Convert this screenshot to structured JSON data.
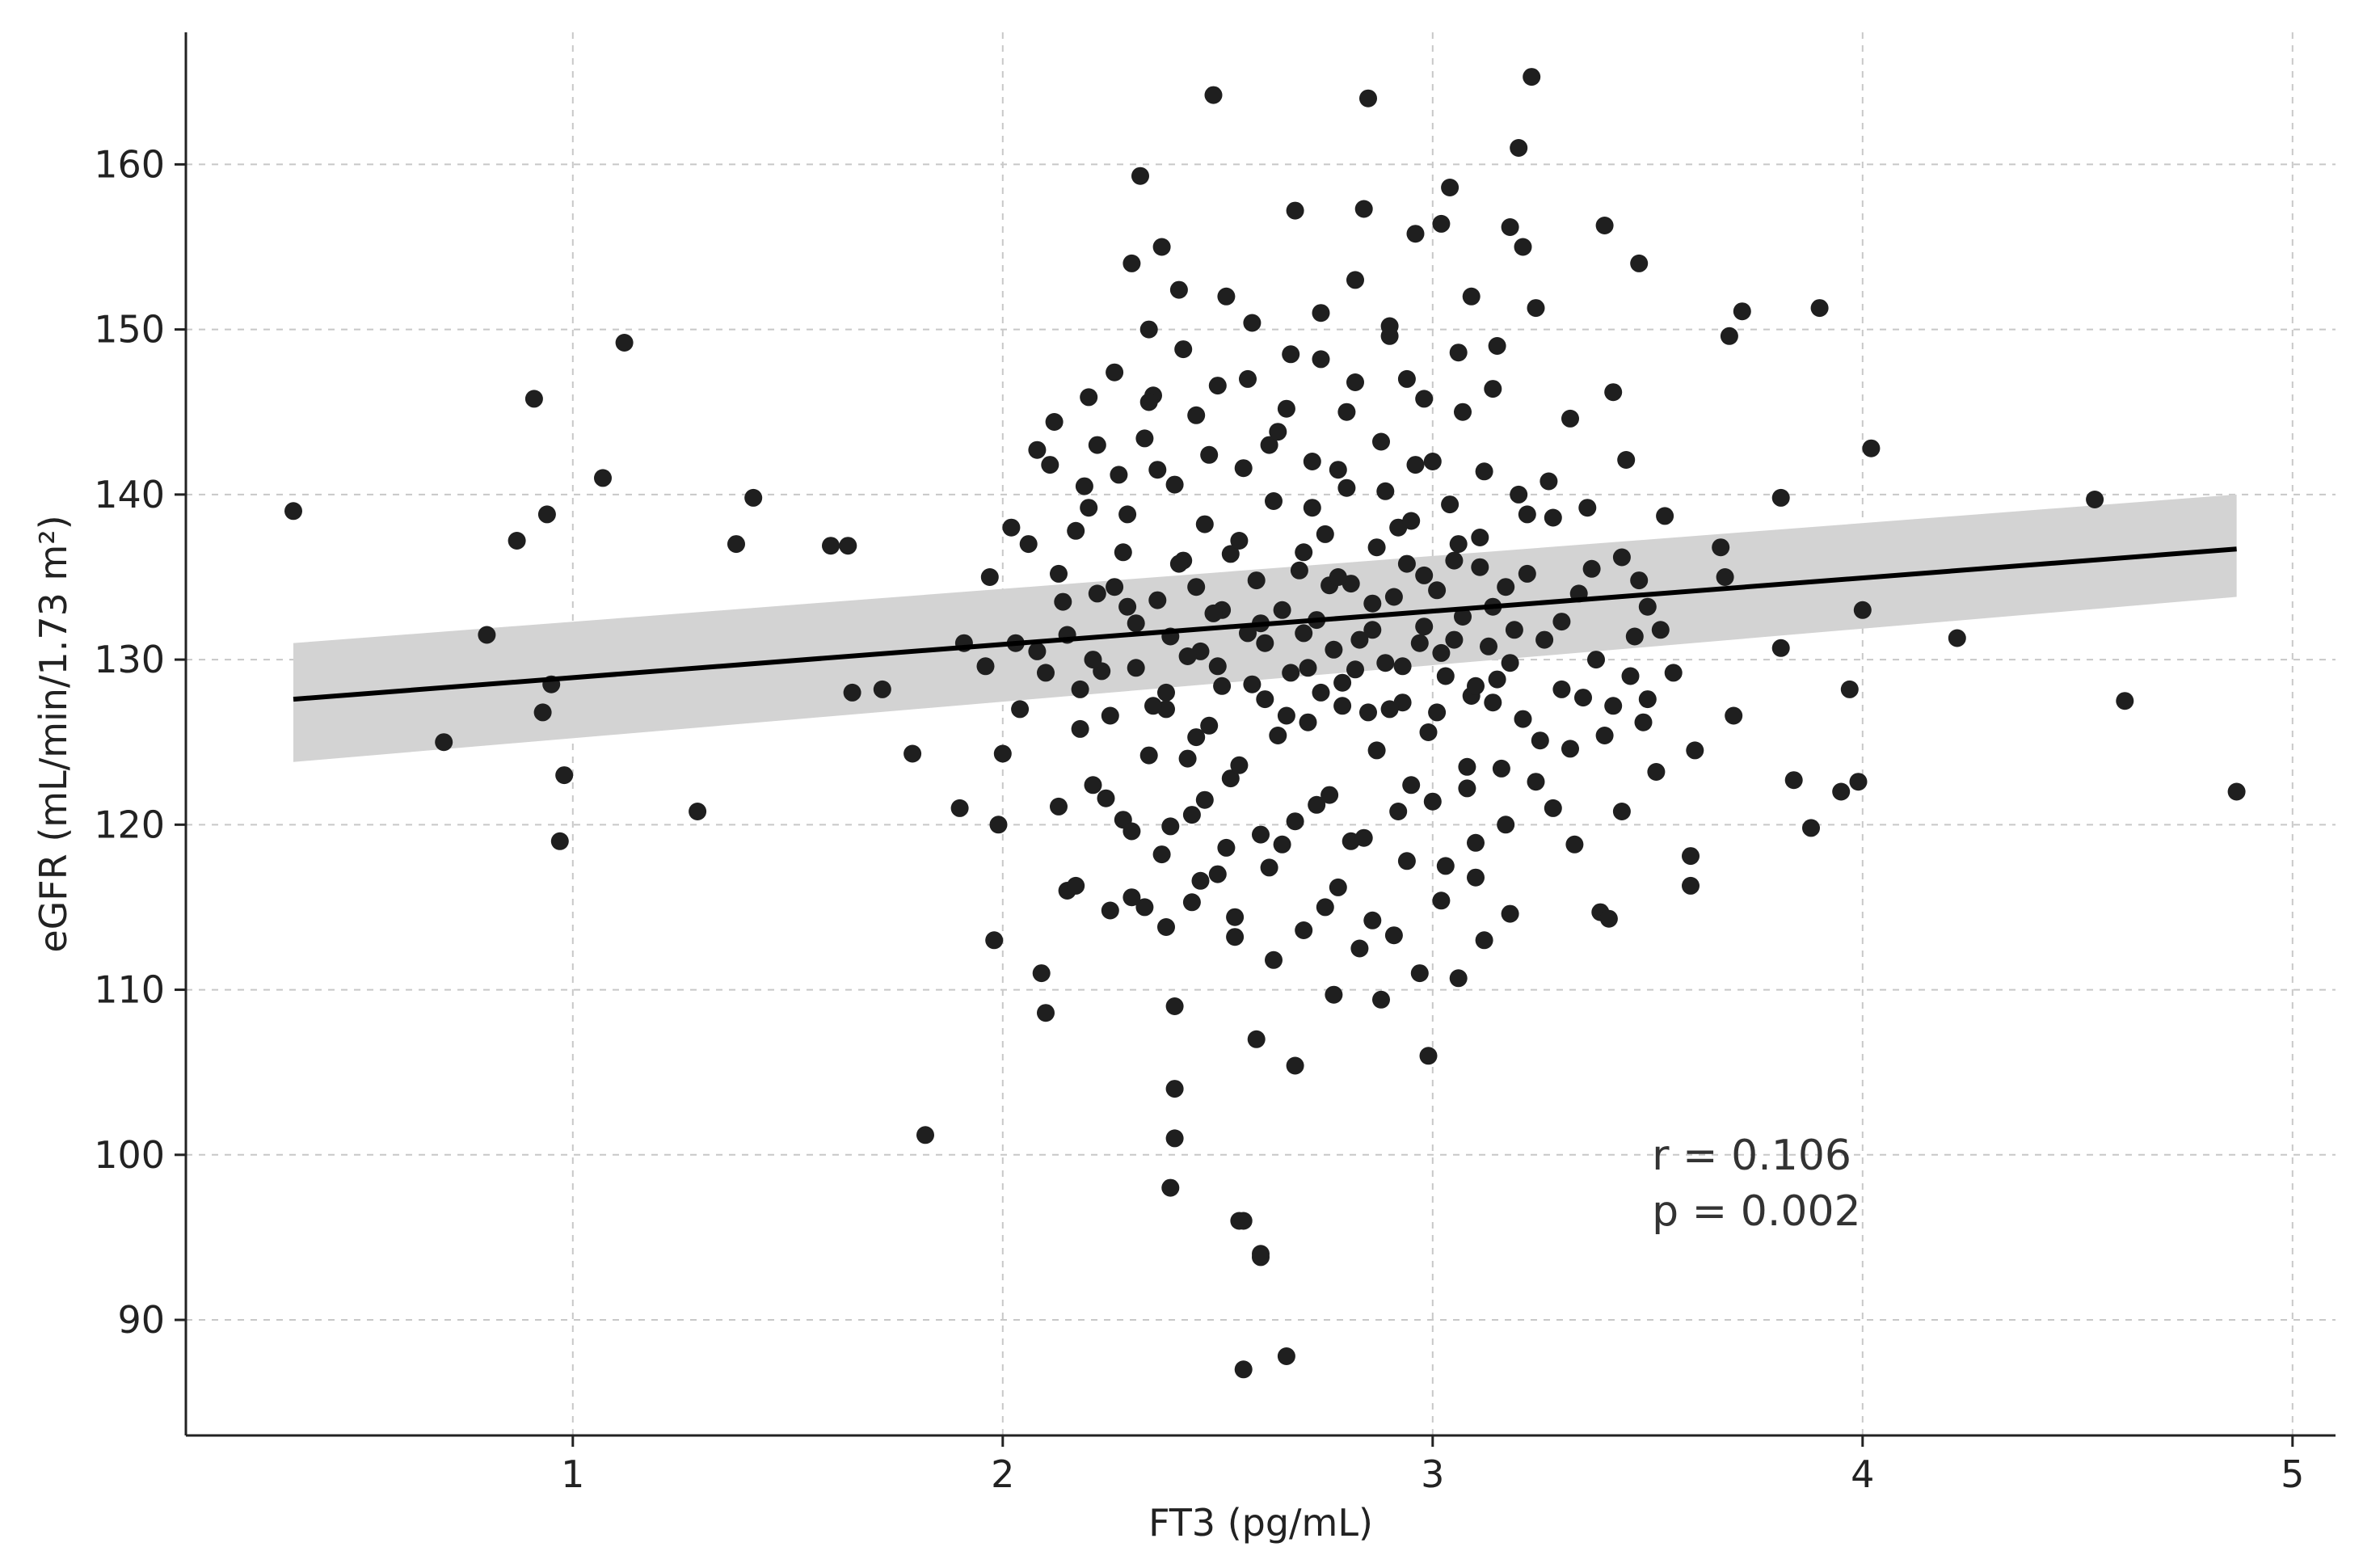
{
  "chart_data": {
    "type": "scatter",
    "title": "",
    "xlabel": "FT3 (pg/mL)",
    "ylabel": "eGFR (mL/min/1.73 m²)",
    "xlim": [
      0.1,
      5.1
    ],
    "ylim": [
      83,
      168
    ],
    "xticks": [
      1,
      2,
      3,
      4,
      5
    ],
    "yticks": [
      90,
      100,
      110,
      120,
      130,
      140,
      150,
      160
    ],
    "grid": true,
    "annotation": {
      "r_text": "r = 0.106",
      "p_text": "p = 0.002"
    },
    "regression": {
      "x": [
        0.35,
        4.87
      ],
      "y": [
        127.6,
        136.7
      ],
      "ci_lower": [
        123.8,
        133.8
      ],
      "ci_upper": [
        131.0,
        140.0
      ]
    },
    "points": [
      [
        0.35,
        139
      ],
      [
        0.7,
        125
      ],
      [
        0.8,
        131.5
      ],
      [
        0.87,
        137.2
      ],
      [
        0.91,
        145.8
      ],
      [
        0.93,
        126.8
      ],
      [
        0.94,
        138.8
      ],
      [
        0.95,
        128.5
      ],
      [
        0.97,
        119
      ],
      [
        0.98,
        123
      ],
      [
        1.07,
        141
      ],
      [
        1.12,
        149.2
      ],
      [
        1.29,
        120.8
      ],
      [
        1.38,
        137
      ],
      [
        1.42,
        139.8
      ],
      [
        1.6,
        136.9
      ],
      [
        1.64,
        136.9
      ],
      [
        1.65,
        128
      ],
      [
        1.72,
        128.2
      ],
      [
        1.79,
        124.3
      ],
      [
        1.82,
        101.2
      ],
      [
        1.9,
        121
      ],
      [
        1.91,
        131
      ],
      [
        1.96,
        129.6
      ],
      [
        1.97,
        135
      ],
      [
        1.98,
        113
      ],
      [
        1.99,
        120
      ],
      [
        2.0,
        124.3
      ],
      [
        2.02,
        138
      ],
      [
        2.03,
        131
      ],
      [
        2.04,
        127
      ],
      [
        2.06,
        137
      ],
      [
        2.08,
        130.5
      ],
      [
        2.08,
        142.7
      ],
      [
        2.09,
        111
      ],
      [
        2.1,
        108.6
      ],
      [
        2.1,
        129.2
      ],
      [
        2.11,
        141.8
      ],
      [
        2.12,
        144.4
      ],
      [
        2.13,
        121.1
      ],
      [
        2.14,
        133.5
      ],
      [
        2.15,
        116
      ],
      [
        2.17,
        116.3
      ],
      [
        2.18,
        125.8
      ],
      [
        2.19,
        140.5
      ],
      [
        2.2,
        145.9
      ],
      [
        2.21,
        122.4
      ],
      [
        2.22,
        143
      ],
      [
        2.23,
        129.3
      ],
      [
        2.25,
        114.8
      ],
      [
        2.26,
        134.4
      ],
      [
        2.28,
        120.3
      ],
      [
        2.29,
        138.8
      ],
      [
        2.3,
        154
      ],
      [
        2.31,
        132.2
      ],
      [
        2.32,
        159.3
      ],
      [
        2.33,
        115
      ],
      [
        2.34,
        150
      ],
      [
        2.35,
        146
      ],
      [
        2.36,
        141.5
      ],
      [
        2.37,
        155
      ],
      [
        2.38,
        128
      ],
      [
        2.39,
        119.9
      ],
      [
        2.4,
        109
      ],
      [
        2.4,
        104
      ],
      [
        2.4,
        101
      ],
      [
        2.39,
        98
      ],
      [
        2.41,
        152.4
      ],
      [
        2.42,
        136
      ],
      [
        2.43,
        124
      ],
      [
        2.44,
        115.3
      ],
      [
        2.45,
        144.8
      ],
      [
        2.46,
        130.5
      ],
      [
        2.47,
        121.5
      ],
      [
        2.48,
        126
      ],
      [
        2.49,
        164.2
      ],
      [
        2.5,
        117
      ],
      [
        2.51,
        133
      ],
      [
        2.52,
        152
      ],
      [
        2.53,
        122.8
      ],
      [
        2.54,
        113.2
      ],
      [
        2.55,
        96
      ],
      [
        2.56,
        96
      ],
      [
        2.56,
        87
      ],
      [
        2.57,
        147
      ],
      [
        2.58,
        128.5
      ],
      [
        2.59,
        107
      ],
      [
        2.6,
        94
      ],
      [
        2.6,
        93.8
      ],
      [
        2.61,
        131
      ],
      [
        2.62,
        143
      ],
      [
        2.63,
        111.8
      ],
      [
        2.64,
        125.4
      ],
      [
        2.65,
        118.8
      ],
      [
        2.66,
        87.8
      ],
      [
        2.67,
        148.5
      ],
      [
        2.68,
        157.2
      ],
      [
        2.68,
        105.4
      ],
      [
        2.7,
        136.5
      ],
      [
        2.71,
        129.5
      ],
      [
        2.72,
        139.2
      ],
      [
        2.73,
        121.2
      ],
      [
        2.74,
        151
      ],
      [
        2.75,
        115
      ],
      [
        2.76,
        134.5
      ],
      [
        2.77,
        109.7
      ],
      [
        2.78,
        141.5
      ],
      [
        2.79,
        127.2
      ],
      [
        2.8,
        145
      ],
      [
        2.81,
        119
      ],
      [
        2.82,
        153
      ],
      [
        2.83,
        112.5
      ],
      [
        2.84,
        157.3
      ],
      [
        2.85,
        164
      ],
      [
        2.86,
        131.8
      ],
      [
        2.87,
        124.5
      ],
      [
        2.88,
        109.4
      ],
      [
        2.89,
        140.2
      ],
      [
        2.9,
        149.6
      ],
      [
        2.91,
        113.3
      ],
      [
        2.92,
        138
      ],
      [
        2.93,
        129.6
      ],
      [
        2.94,
        147
      ],
      [
        2.95,
        122.4
      ],
      [
        2.96,
        155.8
      ],
      [
        2.97,
        111
      ],
      [
        2.98,
        135.1
      ],
      [
        2.99,
        106
      ],
      [
        3.0,
        142
      ],
      [
        3.01,
        126.8
      ],
      [
        3.02,
        156.4
      ],
      [
        3.03,
        117.5
      ],
      [
        3.04,
        158.6
      ],
      [
        3.05,
        131.2
      ],
      [
        3.06,
        110.7
      ],
      [
        3.07,
        145
      ],
      [
        3.08,
        123.5
      ],
      [
        3.09,
        152
      ],
      [
        3.1,
        118.9
      ],
      [
        3.11,
        137.4
      ],
      [
        3.12,
        113
      ],
      [
        3.14,
        127.4
      ],
      [
        3.15,
        149
      ],
      [
        3.17,
        120
      ],
      [
        3.18,
        156.2
      ],
      [
        3.2,
        161
      ],
      [
        3.21,
        155
      ],
      [
        3.22,
        138.8
      ],
      [
        3.23,
        165.3
      ],
      [
        3.24,
        151.3
      ],
      [
        3.25,
        125.1
      ],
      [
        3.27,
        140.8
      ],
      [
        3.28,
        121
      ],
      [
        3.3,
        132.3
      ],
      [
        3.32,
        144.6
      ],
      [
        3.33,
        118.8
      ],
      [
        3.35,
        127.7
      ],
      [
        3.37,
        135.5
      ],
      [
        3.39,
        114.7
      ],
      [
        3.4,
        156.3
      ],
      [
        3.41,
        114.3
      ],
      [
        3.42,
        146.2
      ],
      [
        3.44,
        120.8
      ],
      [
        3.45,
        142.1
      ],
      [
        3.47,
        131.4
      ],
      [
        3.48,
        154
      ],
      [
        3.49,
        126.2
      ],
      [
        3.5,
        133.2
      ],
      [
        3.52,
        123.2
      ],
      [
        3.54,
        138.7
      ],
      [
        3.6,
        118.1
      ],
      [
        3.6,
        116.3
      ],
      [
        3.61,
        124.5
      ],
      [
        3.67,
        136.8
      ],
      [
        3.68,
        135
      ],
      [
        3.69,
        149.6
      ],
      [
        3.7,
        126.6
      ],
      [
        3.72,
        151.1
      ],
      [
        3.81,
        139.8
      ],
      [
        3.81,
        130.7
      ],
      [
        3.84,
        122.7
      ],
      [
        3.88,
        119.8
      ],
      [
        3.9,
        151.3
      ],
      [
        3.95,
        122
      ],
      [
        3.97,
        128.2
      ],
      [
        3.99,
        122.6
      ],
      [
        4.0,
        133
      ],
      [
        4.02,
        142.8
      ],
      [
        4.22,
        131.3
      ],
      [
        4.54,
        139.7
      ],
      [
        4.61,
        127.5
      ],
      [
        4.87,
        122
      ],
      [
        2.15,
        131.5
      ],
      [
        2.18,
        128.2
      ],
      [
        2.22,
        134
      ],
      [
        2.25,
        126.6
      ],
      [
        2.28,
        136.5
      ],
      [
        2.31,
        129.5
      ],
      [
        2.34,
        124.2
      ],
      [
        2.36,
        133.6
      ],
      [
        2.38,
        127
      ],
      [
        2.41,
        135.8
      ],
      [
        2.43,
        130.2
      ],
      [
        2.45,
        125.3
      ],
      [
        2.47,
        138.2
      ],
      [
        2.49,
        132.8
      ],
      [
        2.51,
        128.4
      ],
      [
        2.53,
        136.4
      ],
      [
        2.55,
        123.6
      ],
      [
        2.57,
        131.6
      ],
      [
        2.59,
        134.8
      ],
      [
        2.61,
        127.6
      ],
      [
        2.63,
        139.6
      ],
      [
        2.65,
        133
      ],
      [
        2.67,
        129.2
      ],
      [
        2.69,
        135.4
      ],
      [
        2.71,
        126.2
      ],
      [
        2.73,
        132.4
      ],
      [
        2.75,
        137.6
      ],
      [
        2.77,
        130.6
      ],
      [
        2.79,
        128.6
      ],
      [
        2.81,
        134.6
      ],
      [
        2.83,
        131.2
      ],
      [
        2.85,
        126.8
      ],
      [
        2.87,
        136.8
      ],
      [
        2.89,
        129.8
      ],
      [
        2.91,
        133.8
      ],
      [
        2.93,
        127.4
      ],
      [
        2.95,
        138.4
      ],
      [
        2.97,
        131
      ],
      [
        2.99,
        125.6
      ],
      [
        3.01,
        134.2
      ],
      [
        3.03,
        129
      ],
      [
        3.05,
        136
      ],
      [
        3.07,
        132.6
      ],
      [
        3.09,
        127.8
      ],
      [
        3.11,
        135.6
      ],
      [
        3.13,
        130.8
      ],
      [
        3.15,
        128.8
      ],
      [
        3.17,
        134.4
      ],
      [
        3.19,
        131.8
      ],
      [
        3.21,
        126.4
      ],
      [
        2.2,
        139.2
      ],
      [
        2.24,
        121.6
      ],
      [
        2.27,
        141.2
      ],
      [
        2.3,
        119.6
      ],
      [
        2.33,
        143.4
      ],
      [
        2.37,
        118.2
      ],
      [
        2.4,
        140.6
      ],
      [
        2.44,
        120.6
      ],
      [
        2.48,
        142.4
      ],
      [
        2.52,
        118.6
      ],
      [
        2.56,
        141.6
      ],
      [
        2.6,
        119.4
      ],
      [
        2.64,
        143.8
      ],
      [
        2.68,
        120.2
      ],
      [
        2.72,
        142
      ],
      [
        2.76,
        121.8
      ],
      [
        2.8,
        140.4
      ],
      [
        2.84,
        119.2
      ],
      [
        2.88,
        143.2
      ],
      [
        2.92,
        120.8
      ],
      [
        2.96,
        141.8
      ],
      [
        3.0,
        121.4
      ],
      [
        3.04,
        139.4
      ],
      [
        3.08,
        122.2
      ],
      [
        3.12,
        141.4
      ],
      [
        3.16,
        123.4
      ],
      [
        3.2,
        140
      ],
      [
        3.24,
        122.6
      ],
      [
        3.28,
        138.6
      ],
      [
        3.32,
        124.6
      ],
      [
        2.26,
        147.4
      ],
      [
        2.34,
        145.6
      ],
      [
        2.42,
        148.8
      ],
      [
        2.5,
        146.6
      ],
      [
        2.58,
        150.4
      ],
      [
        2.66,
        145.2
      ],
      [
        2.74,
        148.2
      ],
      [
        2.82,
        146.8
      ],
      [
        2.9,
        150.2
      ],
      [
        2.98,
        145.8
      ],
      [
        3.06,
        148.6
      ],
      [
        3.14,
        146.4
      ],
      [
        2.3,
        115.6
      ],
      [
        2.38,
        113.8
      ],
      [
        2.46,
        116.6
      ],
      [
        2.54,
        114.4
      ],
      [
        2.62,
        117.4
      ],
      [
        2.7,
        113.6
      ],
      [
        2.78,
        116.2
      ],
      [
        2.86,
        114.2
      ],
      [
        2.94,
        117.8
      ],
      [
        3.02,
        115.4
      ],
      [
        3.1,
        116.8
      ],
      [
        3.18,
        114.6
      ],
      [
        2.13,
        135.2
      ],
      [
        2.17,
        137.8
      ],
      [
        2.21,
        130
      ],
      [
        2.29,
        133.2
      ],
      [
        2.35,
        127.2
      ],
      [
        2.39,
        131.4
      ],
      [
        2.45,
        134.4
      ],
      [
        2.5,
        129.6
      ],
      [
        2.55,
        137.2
      ],
      [
        2.6,
        132.2
      ],
      [
        2.66,
        126.6
      ],
      [
        2.7,
        131.6
      ],
      [
        2.74,
        128
      ],
      [
        2.78,
        135
      ],
      [
        2.82,
        129.4
      ],
      [
        2.86,
        133.4
      ],
      [
        2.9,
        127
      ],
      [
        2.94,
        135.8
      ],
      [
        2.98,
        132
      ],
      [
        3.02,
        130.4
      ],
      [
        3.06,
        137
      ],
      [
        3.1,
        128.4
      ],
      [
        3.14,
        133.2
      ],
      [
        3.18,
        129.8
      ],
      [
        3.22,
        135.2
      ],
      [
        3.26,
        131.2
      ],
      [
        3.3,
        128.2
      ],
      [
        3.34,
        134
      ],
      [
        3.38,
        130
      ],
      [
        3.42,
        127.2
      ],
      [
        3.36,
        139.2
      ],
      [
        3.4,
        125.4
      ],
      [
        3.44,
        136.2
      ],
      [
        3.46,
        129
      ],
      [
        3.48,
        134.8
      ],
      [
        3.5,
        127.6
      ],
      [
        3.53,
        131.8
      ],
      [
        3.56,
        129.2
      ]
    ]
  }
}
